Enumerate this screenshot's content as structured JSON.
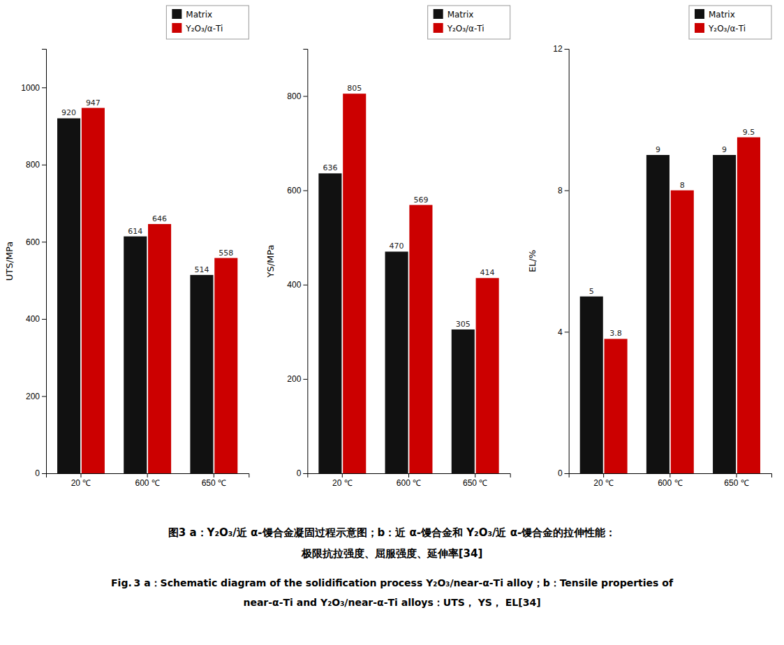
{
  "chart_data": [
    {
      "type": "bar",
      "categories": [
        "20 ℃",
        "600 ℃",
        "650 ℃"
      ],
      "series": [
        {
          "name": "Matrix",
          "color": "#111111",
          "values": [
            920,
            614,
            514
          ]
        },
        {
          "name": "Y₂O₃/α-Ti",
          "color": "#cc0000",
          "values": [
            947,
            646,
            558
          ]
        }
      ],
      "ylabel": "UTS/MPa",
      "ylim": [
        0,
        1100
      ],
      "yticks": [
        0,
        200,
        400,
        600,
        800,
        1000
      ],
      "data_labels": true,
      "legend": "upper right",
      "grid": false
    },
    {
      "type": "bar",
      "categories": [
        "20 ℃",
        "600 ℃",
        "650 ℃"
      ],
      "series": [
        {
          "name": "Matrix",
          "color": "#111111",
          "values": [
            636,
            470,
            305
          ]
        },
        {
          "name": "Y₂O₃/α-Ti",
          "color": "#cc0000",
          "values": [
            805,
            569,
            414
          ]
        }
      ],
      "ylabel": "YS/MPa",
      "ylim": [
        0,
        900
      ],
      "yticks": [
        0,
        200,
        400,
        600,
        800
      ],
      "data_labels": true,
      "legend": "upper right",
      "grid": false
    },
    {
      "type": "bar",
      "categories": [
        "20 ℃",
        "600 ℃",
        "650 ℃"
      ],
      "series": [
        {
          "name": "Matrix",
          "color": "#111111",
          "values": [
            5,
            9,
            9
          ]
        },
        {
          "name": "Y₂O₃/α-Ti",
          "color": "#cc0000",
          "values": [
            3.8,
            8,
            9.5
          ]
        }
      ],
      "ylabel": "EL/%",
      "ylim": [
        0,
        12
      ],
      "yticks": [
        0,
        4,
        8,
        12
      ],
      "data_labels": true,
      "legend": "upper right",
      "grid": false
    }
  ],
  "annotations": [
    "图3   a：Y₂O₃/近 α-馒合金凝固过程示意图；b：近 α-馒合金和 Y₂O₃/近 α-馒合金的拉伸性能：",
    "极限抗拉强度、屈服强度、延伸率[34]",
    "Fig. 3   a：Schematic diagram of the solidification process Y₂O₃/near-α-Ti alloy；b：Tensile properties of",
    "near-α-Ti and Y₂O₃/near-α-Ti alloys：UTS， YS， EL[34]"
  ]
}
